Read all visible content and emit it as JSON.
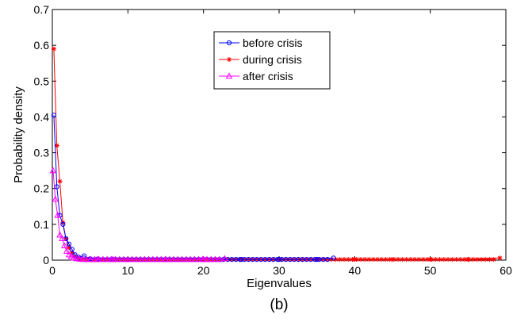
{
  "chart_data": {
    "type": "line",
    "caption": "(b)",
    "xlabel": "Eigenvalues",
    "ylabel": "Probability density",
    "xlim": [
      0,
      60
    ],
    "ylim": [
      0,
      0.7
    ],
    "xticks": [
      0,
      10,
      20,
      30,
      40,
      50,
      60
    ],
    "yticks": [
      0,
      0.1,
      0.2,
      0.3,
      0.4,
      0.5,
      0.6,
      0.7
    ],
    "grid": false,
    "legend_position": "top-center",
    "series": [
      {
        "name": "before crisis",
        "color": "#0000ff",
        "marker": "circle",
        "x": [
          0.2,
          0.6,
          1.0,
          1.4,
          1.8,
          2.2,
          2.6,
          3.0,
          3.5,
          4.2,
          5.0,
          6.0,
          8.0,
          10.0,
          15.0,
          20.0,
          25.0,
          30.0,
          35.0,
          37.2
        ],
        "y": [
          0.405,
          0.205,
          0.125,
          0.1,
          0.06,
          0.045,
          0.03,
          0.015,
          0.008,
          0.012,
          0.004,
          0.003,
          0.002,
          0.002,
          0.002,
          0.002,
          0.002,
          0.002,
          0.002,
          0.006
        ]
      },
      {
        "name": "during crisis",
        "color": "#ff0000",
        "marker": "star",
        "x": [
          0.2,
          0.6,
          1.0,
          1.4,
          1.8,
          2.2,
          2.6,
          3.0,
          3.5,
          4.0,
          5.0,
          6.0,
          8.0,
          10.0,
          15.0,
          20.0,
          25.0,
          30.0,
          35.0,
          40.0,
          45.0,
          50.0,
          55.0,
          59.2
        ],
        "y": [
          0.59,
          0.32,
          0.22,
          0.105,
          0.06,
          0.035,
          0.02,
          0.01,
          0.005,
          0.003,
          0.002,
          0.002,
          0.002,
          0.002,
          0.002,
          0.002,
          0.002,
          0.002,
          0.002,
          0.002,
          0.002,
          0.002,
          0.002,
          0.006
        ]
      },
      {
        "name": "after crisis",
        "color": "#ff00ff",
        "marker": "triangle",
        "x": [
          0.1,
          0.4,
          0.7,
          1.0,
          1.3,
          1.6,
          1.9,
          2.2,
          2.5,
          2.8,
          3.2,
          3.6,
          4.0,
          5.0,
          6.0,
          8.0,
          10.0,
          15.0,
          20.0,
          22.8
        ],
        "y": [
          0.25,
          0.17,
          0.125,
          0.07,
          0.06,
          0.04,
          0.025,
          0.015,
          0.01,
          0.006,
          0.004,
          0.003,
          0.002,
          0.002,
          0.002,
          0.002,
          0.002,
          0.002,
          0.002,
          0.004
        ]
      }
    ]
  }
}
